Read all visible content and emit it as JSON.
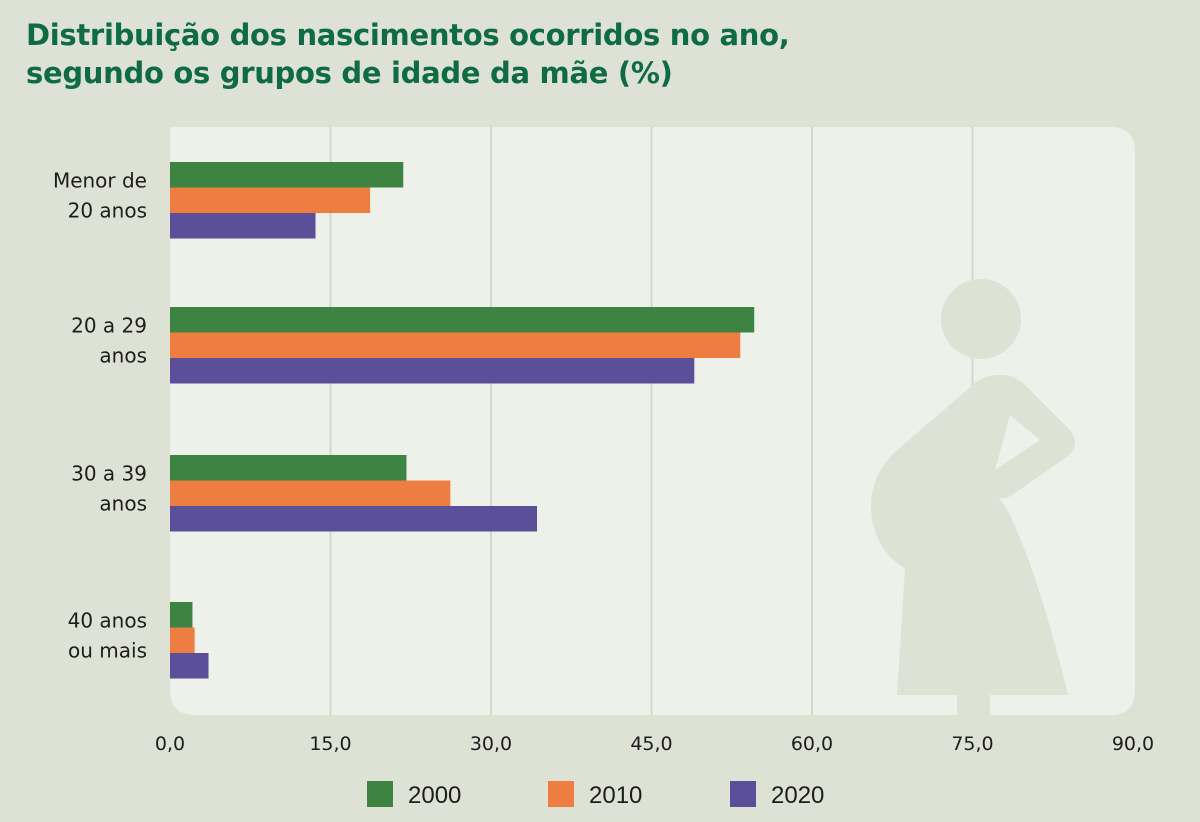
{
  "chart_data": {
    "type": "bar",
    "orientation": "horizontal",
    "title": "Distribuição dos nascimentos ocorridos no ano, segundo os grupos de idade da mãe (%)",
    "title_lines": [
      "Distribuição dos nascimentos ocorridos no ano,",
      "segundo os grupos de idade da mãe (%)"
    ],
    "categories": [
      [
        "Menor de",
        "20 anos"
      ],
      [
        "20 a 29",
        "anos"
      ],
      [
        "30 a 39",
        "anos"
      ],
      [
        "40 anos",
        "ou mais"
      ]
    ],
    "series": [
      {
        "name": "2000",
        "color": "#3d8443",
        "values": [
          21.8,
          54.6,
          22.1,
          2.1
        ]
      },
      {
        "name": "2010",
        "color": "#ed7d40",
        "values": [
          18.7,
          53.3,
          26.2,
          2.3
        ]
      },
      {
        "name": "2020",
        "color": "#5b4f9a",
        "values": [
          13.6,
          49.0,
          34.3,
          3.6
        ]
      }
    ],
    "xlabel": "",
    "ylabel": "",
    "xlim": [
      0,
      90
    ],
    "xticks": [
      0,
      15,
      30,
      45,
      60,
      75,
      90
    ],
    "xtick_labels": [
      "0,0",
      "15,0",
      "30,0",
      "45,0",
      "60,0",
      "75,0",
      "90,0"
    ],
    "grid": true,
    "legend_position": "bottom"
  },
  "colors": {
    "title": "#0e6b45",
    "background": "#dde2d5",
    "panel": "#eef0ea",
    "gridline": "#d4d8cc",
    "silhouette": "#dce2d4"
  },
  "decoration": {
    "icon": "pregnant-woman-silhouette-icon"
  }
}
